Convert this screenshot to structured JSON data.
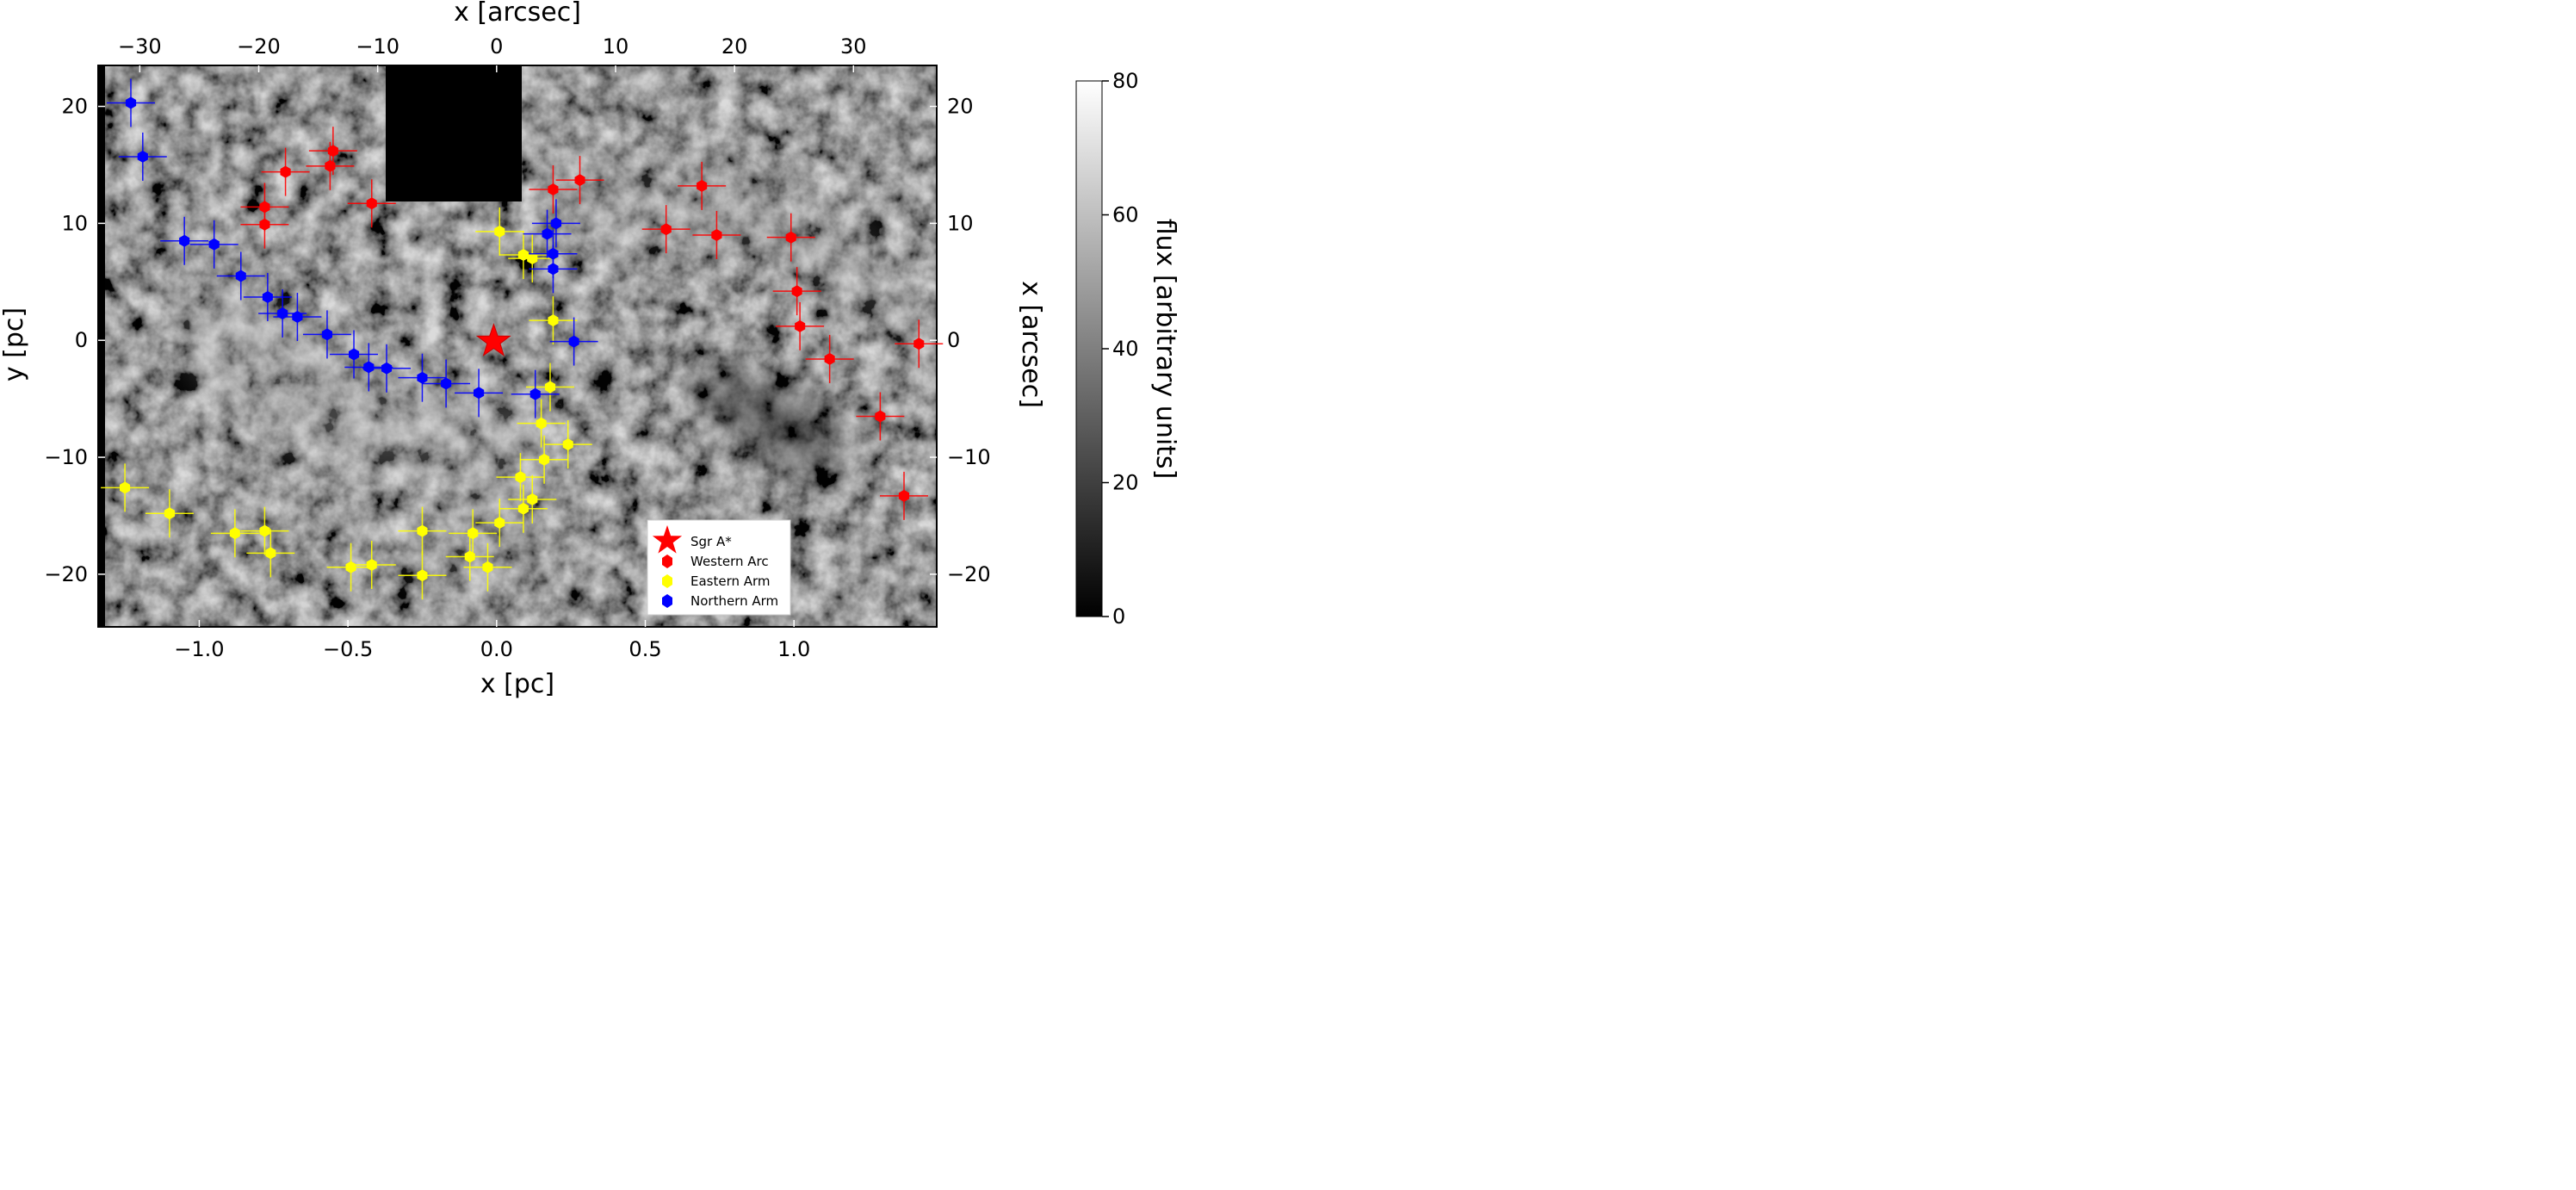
{
  "chart_data": {
    "type": "scatter",
    "background": "grayscale flux map",
    "xlabel_bottom": "x [pc]",
    "xlabel_top": "x [arcsec]",
    "ylabel_left": "y [pc]",
    "ylabel_right": "x [arcsec]",
    "colorbar_label": "flux [arbitrary units]",
    "colorbar_range": [
      0,
      80
    ],
    "colorbar_ticks": [
      0,
      20,
      40,
      60,
      80
    ],
    "xlim_pc": [
      -1.34,
      1.48
    ],
    "ylim_pc": [
      -24.5,
      23.5
    ],
    "x_ticks_pc": [
      "−1.0",
      "−0.5",
      "0.0",
      "0.5",
      "1.0"
    ],
    "x_ticks_arcsec": [
      "−30",
      "−20",
      "−10",
      "0",
      "10",
      "20",
      "30"
    ],
    "y_ticks_left": [
      "20",
      "10",
      "0",
      "−10",
      "−20"
    ],
    "y_ticks_right": [
      "20",
      "10",
      "0",
      "−10",
      "−20"
    ],
    "legend_position": "lower-right",
    "sgr_a": {
      "name": "Sgr A*",
      "x": -0.01,
      "y": -0.1,
      "color": "#ff0000"
    },
    "series": [
      {
        "name": "Western Arc",
        "color": "#ff0000",
        "points": [
          [
            -0.71,
            14.4
          ],
          [
            -0.56,
            14.9
          ],
          [
            -0.55,
            16.2
          ],
          [
            -0.78,
            11.4
          ],
          [
            -0.78,
            9.9
          ],
          [
            -0.42,
            11.7
          ],
          [
            0.19,
            12.9
          ],
          [
            0.28,
            13.7
          ],
          [
            0.57,
            9.5
          ],
          [
            0.69,
            13.2
          ],
          [
            0.74,
            9.0
          ],
          [
            0.99,
            8.8
          ],
          [
            1.01,
            4.2
          ],
          [
            1.02,
            1.2
          ],
          [
            1.12,
            -1.6
          ],
          [
            1.29,
            -6.5
          ],
          [
            1.37,
            -13.3
          ],
          [
            1.42,
            -0.3
          ]
        ]
      },
      {
        "name": "Eastern Arm",
        "color": "#ffff00",
        "points": [
          [
            0.01,
            9.3
          ],
          [
            0.09,
            7.3
          ],
          [
            0.12,
            7.0
          ],
          [
            0.19,
            1.7
          ],
          [
            0.18,
            -4.0
          ],
          [
            0.15,
            -7.1
          ],
          [
            0.24,
            -8.9
          ],
          [
            0.16,
            -10.2
          ],
          [
            0.08,
            -11.7
          ],
          [
            0.12,
            -13.6
          ],
          [
            0.09,
            -14.4
          ],
          [
            0.01,
            -15.6
          ],
          [
            -0.08,
            -16.5
          ],
          [
            -0.25,
            -16.3
          ],
          [
            -0.09,
            -18.5
          ],
          [
            -0.03,
            -19.4
          ],
          [
            -0.25,
            -20.1
          ],
          [
            -0.42,
            -19.2
          ],
          [
            -0.49,
            -19.4
          ],
          [
            -0.78,
            -16.3
          ],
          [
            -0.88,
            -16.5
          ],
          [
            -0.76,
            -18.2
          ],
          [
            -1.1,
            -14.8
          ],
          [
            -1.25,
            -12.6
          ]
        ]
      },
      {
        "name": "Northern Arm",
        "color": "#0000ff",
        "points": [
          [
            -1.23,
            20.3
          ],
          [
            -1.19,
            15.7
          ],
          [
            -1.05,
            8.5
          ],
          [
            -0.95,
            8.2
          ],
          [
            -0.86,
            5.5
          ],
          [
            -0.77,
            3.7
          ],
          [
            -0.72,
            2.3
          ],
          [
            -0.67,
            2.0
          ],
          [
            -0.57,
            0.5
          ],
          [
            -0.48,
            -1.2
          ],
          [
            -0.43,
            -2.3
          ],
          [
            -0.37,
            -2.4
          ],
          [
            -0.25,
            -3.2
          ],
          [
            -0.17,
            -3.7
          ],
          [
            -0.06,
            -4.5
          ],
          [
            0.13,
            -4.6
          ],
          [
            0.26,
            -0.1
          ],
          [
            0.19,
            6.1
          ],
          [
            0.17,
            9.1
          ],
          [
            0.2,
            10.0
          ],
          [
            0.19,
            7.4
          ]
        ]
      }
    ]
  }
}
